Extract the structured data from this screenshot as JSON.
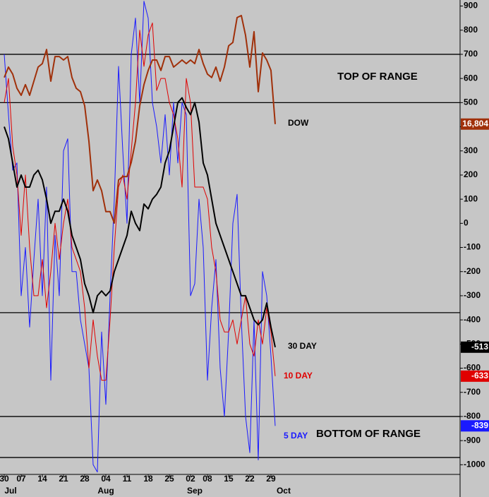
{
  "chart_data": {
    "type": "line",
    "categories": [
      "30",
      null,
      null,
      null,
      "07",
      null,
      null,
      null,
      null,
      "14",
      null,
      null,
      null,
      null,
      "21",
      null,
      null,
      null,
      null,
      "28",
      null,
      null,
      null,
      null,
      "04",
      null,
      null,
      null,
      null,
      "11",
      null,
      null,
      null,
      null,
      "18",
      null,
      null,
      null,
      null,
      "25",
      null,
      null,
      null,
      null,
      "02",
      null,
      null,
      null,
      "08",
      null,
      null,
      null,
      null,
      "15",
      null,
      null,
      null,
      null,
      "22",
      null,
      null,
      null,
      null,
      "29",
      null
    ],
    "months": [
      {
        "value": 1.5,
        "label": "Jul"
      },
      {
        "value": 24,
        "label": "Aug"
      },
      {
        "value": 45,
        "label": "Sep"
      },
      {
        "value": 66,
        "label": "Oct"
      }
    ],
    "xlim": [
      -1,
      107.67
    ],
    "ylim": [
      -1040,
      925
    ],
    "yticks": [
      900,
      800,
      700,
      600,
      500,
      400,
      300,
      200,
      100,
      0,
      -100,
      -200,
      -300,
      -400,
      -500,
      -600,
      -700,
      -800,
      -900,
      -1000
    ],
    "y2lim": [
      15268,
      17348
    ],
    "hlines": [
      700,
      500,
      -370,
      -800,
      -970
    ],
    "annotations": [
      {
        "text": "TOP OF RANGE"
      },
      {
        "text": "BOTTOM OF RANGE"
      }
    ],
    "series": [
      {
        "name": "5 DAY",
        "color": "#1a1aff",
        "values": [
          700,
          450,
          220,
          250,
          -300,
          -100,
          -430,
          -150,
          100,
          -300,
          150,
          -650,
          -50,
          -300,
          300,
          350,
          -200,
          -200,
          -400,
          -500,
          -600,
          -1000,
          -1030,
          -450,
          -750,
          -300,
          100,
          650,
          300,
          0,
          700,
          850,
          500,
          920,
          850,
          500,
          400,
          250,
          450,
          200,
          500,
          250,
          500,
          450,
          -300,
          -250,
          100,
          -100,
          -650,
          -350,
          -150,
          -600,
          -800,
          -450,
          0,
          120,
          -400,
          -800,
          -950,
          -400,
          -980,
          -200,
          -300,
          -550,
          -839
        ]
      },
      {
        "name": "10 DAY",
        "color": "#e00000",
        "values": [
          500,
          600,
          320,
          200,
          -50,
          200,
          -100,
          -300,
          -300,
          -150,
          -350,
          -200,
          0,
          -150,
          0,
          100,
          -100,
          -150,
          -200,
          -350,
          -600,
          -400,
          -550,
          -650,
          -650,
          -400,
          -100,
          150,
          200,
          100,
          300,
          500,
          800,
          650,
          780,
          830,
          550,
          600,
          600,
          500,
          450,
          350,
          150,
          600,
          500,
          150,
          150,
          150,
          100,
          -100,
          -200,
          -400,
          -450,
          -450,
          -400,
          -500,
          -400,
          -300,
          -500,
          -550,
          -400,
          -500,
          -350,
          -450,
          -633
        ]
      },
      {
        "name": "30 DAY",
        "color": "#000000",
        "values": [
          400,
          350,
          250,
          150,
          200,
          150,
          150,
          200,
          220,
          180,
          100,
          0,
          50,
          50,
          100,
          50,
          -50,
          -100,
          -150,
          -250,
          -300,
          -370,
          -300,
          -280,
          -300,
          -280,
          -200,
          -150,
          -100,
          -50,
          50,
          0,
          -30,
          80,
          60,
          100,
          120,
          150,
          250,
          300,
          400,
          500,
          520,
          480,
          450,
          500,
          420,
          250,
          200,
          100,
          0,
          -50,
          -100,
          -150,
          -200,
          -250,
          -300,
          -300,
          -350,
          -400,
          -420,
          -400,
          -330,
          -430,
          -513
        ]
      },
      {
        "name": "DOW",
        "color": "#a0300a",
        "axis": "y2",
        "end_label": "16,804",
        "values": [
          17008,
          17054,
          17023,
          16961,
          16930,
          16977,
          16930,
          16992,
          17054,
          17069,
          17131,
          16992,
          17100,
          17100,
          17085,
          17100,
          17008,
          16961,
          16946,
          16884,
          16729,
          16512,
          16559,
          16512,
          16420,
          16420,
          16370,
          16559,
          16574,
          16574,
          16636,
          16729,
          16884,
          16977,
          17039,
          17085,
          17085,
          17039,
          17100,
          17100,
          17054,
          17069,
          17085,
          17069,
          17085,
          17069,
          17131,
          17069,
          17023,
          17008,
          17054,
          16992,
          17054,
          17147,
          17162,
          17271,
          17280,
          17193,
          17054,
          17209,
          16946,
          17116,
          17085,
          17039,
          16804
        ]
      }
    ]
  }
}
